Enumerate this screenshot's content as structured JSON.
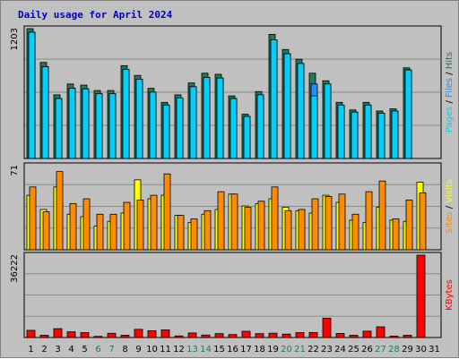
{
  "title": "Daily usage for April 2024",
  "colors": {
    "hits": "#1f7a5a",
    "files": "#1e90ff",
    "pages": "#00d0ff",
    "visits": "#ffff00",
    "sites": "#ff8c00",
    "kbytes": "#ff0000",
    "weekday_label": "#000000",
    "weekend_label": "#1f7a5a"
  },
  "chart_data": [
    {
      "type": "bar",
      "panel": "hits-files-pages",
      "ylabel_parts": [
        "Pages",
        "Files",
        "Hits"
      ],
      "ymax_label": "1203",
      "ylim": [
        0,
        1203
      ],
      "categories": [
        "1",
        "2",
        "3",
        "4",
        "5",
        "6",
        "7",
        "8",
        "9",
        "10",
        "11",
        "12",
        "13",
        "14",
        "15",
        "16",
        "17",
        "18",
        "19",
        "20",
        "21",
        "22",
        "23",
        "24",
        "25",
        "26",
        "27",
        "28",
        "29",
        "30",
        "31"
      ],
      "series": [
        {
          "name": "Hits",
          "values": [
            1203,
            890,
            590,
            690,
            680,
            630,
            630,
            860,
            770,
            650,
            520,
            590,
            700,
            790,
            780,
            580,
            410,
            620,
            1150,
            1010,
            920,
            790,
            720,
            520,
            450,
            520,
            440,
            460,
            840,
            0,
            0
          ]
        },
        {
          "name": "Files",
          "values": [
            1170,
            850,
            555,
            650,
            645,
            600,
            600,
            825,
            735,
            615,
            495,
            560,
            665,
            750,
            745,
            555,
            390,
            590,
            1100,
            970,
            880,
            690,
            690,
            495,
            430,
            495,
            420,
            440,
            820,
            0,
            0
          ]
        },
        {
          "name": "Pages",
          "values": [
            1170,
            850,
            555,
            650,
            645,
            600,
            600,
            825,
            735,
            615,
            495,
            560,
            665,
            750,
            745,
            555,
            390,
            590,
            1100,
            970,
            880,
            580,
            690,
            495,
            430,
            495,
            420,
            440,
            820,
            0,
            0
          ]
        }
      ]
    },
    {
      "type": "bar",
      "panel": "visits-sites",
      "ylabel_parts": [
        "Sites",
        "Visits"
      ],
      "ymax_label": "71",
      "ylim": [
        0,
        71
      ],
      "series": [
        {
          "name": "Visits",
          "values": [
            46,
            34,
            53,
            30,
            28,
            20,
            24,
            31,
            59,
            43,
            46,
            29,
            23,
            30,
            34,
            47,
            37,
            39,
            43,
            36,
            33,
            31,
            46,
            40,
            25,
            23,
            36,
            25,
            24,
            57,
            0
          ]
        },
        {
          "name": "Sites",
          "values": [
            53,
            32,
            66,
            39,
            43,
            30,
            30,
            40,
            42,
            46,
            64,
            29,
            26,
            33,
            49,
            47,
            36,
            41,
            53,
            33,
            34,
            43,
            45,
            47,
            30,
            49,
            58,
            26,
            42,
            48,
            0
          ]
        }
      ]
    },
    {
      "type": "bar",
      "panel": "kbytes",
      "ylabel_parts": [
        "KBytes"
      ],
      "ymax_label": "36222",
      "ylim": [
        0,
        36222
      ],
      "series": [
        {
          "name": "KBytes",
          "values": [
            3150,
            1000,
            3900,
            2500,
            2150,
            500,
            1850,
            1000,
            3600,
            3000,
            3350,
            700,
            2000,
            1100,
            1700,
            1300,
            2750,
            1700,
            1900,
            1500,
            2150,
            2200,
            8500,
            1800,
            1000,
            2800,
            4700,
            600,
            1000,
            36222,
            0
          ]
        }
      ]
    }
  ]
}
